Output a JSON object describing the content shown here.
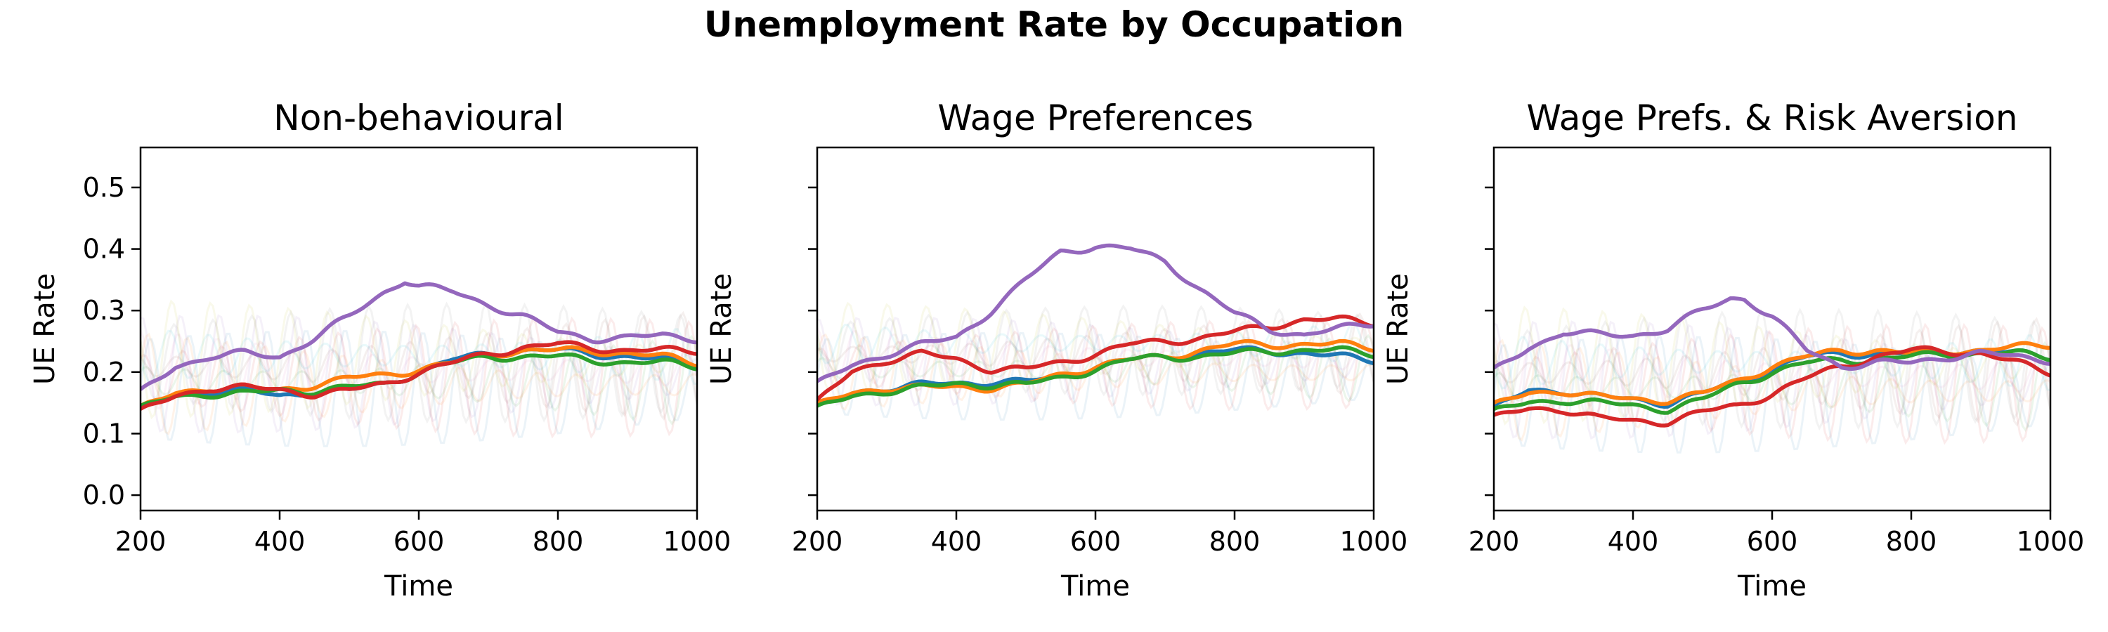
{
  "figure_title": "Unemployment Rate by Occupation",
  "colors": {
    "blue": "#1f77b4",
    "orange": "#ff7f0e",
    "green": "#2ca02c",
    "red": "#d62728",
    "purple": "#9467bd"
  },
  "chart_data": [
    {
      "type": "line",
      "title": "Non-behavioural",
      "xlabel": "Time",
      "ylabel": "UE Rate",
      "xlim": [
        200,
        1000
      ],
      "ylim": [
        -0.025,
        0.565
      ],
      "xticks": [
        200,
        400,
        600,
        800,
        1000
      ],
      "yticks": [
        0.0,
        0.1,
        0.2,
        0.3,
        0.4,
        0.5
      ],
      "show_ytick_labels": true,
      "grid": false,
      "background": {
        "center": 0.2,
        "amp": 0.08,
        "period": 56,
        "style": "faint oscillating individual runs"
      },
      "series": [
        {
          "color": "blue",
          "x": [
            200,
            250,
            300,
            350,
            400,
            450,
            500,
            550,
            600,
            650,
            700,
            750,
            800,
            850,
            900,
            950,
            1000
          ],
          "y": [
            0.14,
            0.16,
            0.17,
            0.17,
            0.16,
            0.17,
            0.17,
            0.18,
            0.2,
            0.22,
            0.23,
            0.235,
            0.235,
            0.23,
            0.225,
            0.22,
            0.215
          ]
        },
        {
          "color": "orange",
          "x": [
            200,
            250,
            300,
            350,
            400,
            450,
            500,
            550,
            600,
            650,
            700,
            750,
            800,
            850,
            900,
            950,
            1000
          ],
          "y": [
            0.14,
            0.165,
            0.175,
            0.175,
            0.17,
            0.18,
            0.19,
            0.195,
            0.205,
            0.215,
            0.23,
            0.235,
            0.235,
            0.235,
            0.23,
            0.225,
            0.215
          ]
        },
        {
          "color": "green",
          "x": [
            200,
            250,
            300,
            350,
            400,
            450,
            500,
            550,
            600,
            650,
            700,
            750,
            800,
            850,
            900,
            950,
            1000
          ],
          "y": [
            0.14,
            0.16,
            0.165,
            0.165,
            0.17,
            0.17,
            0.175,
            0.18,
            0.2,
            0.215,
            0.225,
            0.225,
            0.225,
            0.22,
            0.215,
            0.215,
            0.21
          ]
        },
        {
          "color": "red",
          "x": [
            200,
            250,
            300,
            350,
            400,
            450,
            500,
            550,
            600,
            650,
            700,
            750,
            800,
            850,
            900,
            950,
            1000
          ],
          "y": [
            0.135,
            0.16,
            0.175,
            0.175,
            0.17,
            0.165,
            0.17,
            0.18,
            0.2,
            0.215,
            0.23,
            0.24,
            0.245,
            0.24,
            0.235,
            0.235,
            0.235
          ]
        },
        {
          "color": "purple",
          "x": [
            200,
            250,
            300,
            350,
            400,
            450,
            500,
            550,
            580,
            600,
            650,
            700,
            750,
            800,
            850,
            900,
            950,
            1000
          ],
          "y": [
            0.165,
            0.21,
            0.225,
            0.23,
            0.225,
            0.255,
            0.29,
            0.33,
            0.35,
            0.34,
            0.33,
            0.31,
            0.29,
            0.265,
            0.255,
            0.255,
            0.26,
            0.255
          ]
        }
      ]
    },
    {
      "type": "line",
      "title": "Wage Preferences",
      "xlabel": "Time",
      "ylabel": "UE Rate",
      "xlim": [
        200,
        1000
      ],
      "ylim": [
        -0.025,
        0.565
      ],
      "xticks": [
        200,
        400,
        600,
        800,
        1000
      ],
      "yticks": [
        0.0,
        0.1,
        0.2,
        0.3,
        0.4,
        0.5
      ],
      "show_ytick_labels": false,
      "grid": false,
      "background": {
        "center": 0.22,
        "amp": 0.06,
        "period": 56,
        "style": "faint oscillating individual runs"
      },
      "series": [
        {
          "color": "blue",
          "x": [
            200,
            250,
            300,
            350,
            400,
            450,
            500,
            550,
            600,
            650,
            700,
            750,
            800,
            850,
            900,
            950,
            1000
          ],
          "y": [
            0.14,
            0.165,
            0.175,
            0.18,
            0.18,
            0.185,
            0.185,
            0.19,
            0.21,
            0.22,
            0.225,
            0.23,
            0.235,
            0.235,
            0.23,
            0.225,
            0.22
          ]
        },
        {
          "color": "orange",
          "x": [
            200,
            250,
            300,
            350,
            400,
            450,
            500,
            550,
            600,
            650,
            700,
            750,
            800,
            850,
            900,
            950,
            1000
          ],
          "y": [
            0.145,
            0.165,
            0.175,
            0.175,
            0.175,
            0.175,
            0.18,
            0.195,
            0.21,
            0.22,
            0.225,
            0.235,
            0.245,
            0.245,
            0.245,
            0.245,
            0.24
          ]
        },
        {
          "color": "green",
          "x": [
            200,
            250,
            300,
            350,
            400,
            450,
            500,
            550,
            600,
            650,
            700,
            750,
            800,
            850,
            900,
            950,
            1000
          ],
          "y": [
            0.14,
            0.16,
            0.17,
            0.175,
            0.18,
            0.18,
            0.18,
            0.19,
            0.205,
            0.22,
            0.225,
            0.225,
            0.23,
            0.235,
            0.235,
            0.235,
            0.23
          ]
        },
        {
          "color": "red",
          "x": [
            200,
            250,
            300,
            350,
            400,
            450,
            500,
            550,
            600,
            650,
            700,
            750,
            800,
            850,
            900,
            950,
            1000
          ],
          "y": [
            0.15,
            0.2,
            0.22,
            0.23,
            0.22,
            0.205,
            0.205,
            0.215,
            0.23,
            0.245,
            0.25,
            0.255,
            0.265,
            0.275,
            0.285,
            0.285,
            0.28
          ]
        },
        {
          "color": "purple",
          "x": [
            200,
            250,
            300,
            350,
            400,
            450,
            500,
            550,
            600,
            650,
            700,
            750,
            800,
            850,
            900,
            950,
            1000
          ],
          "y": [
            0.18,
            0.21,
            0.23,
            0.245,
            0.255,
            0.3,
            0.35,
            0.395,
            0.405,
            0.4,
            0.38,
            0.335,
            0.295,
            0.27,
            0.26,
            0.27,
            0.28
          ]
        }
      ]
    },
    {
      "type": "line",
      "title": "Wage Prefs. & Risk Aversion",
      "xlabel": "Time",
      "ylabel": "UE Rate",
      "xlim": [
        200,
        1000
      ],
      "ylim": [
        -0.025,
        0.565
      ],
      "xticks": [
        200,
        400,
        600,
        800,
        1000
      ],
      "yticks": [
        0.0,
        0.1,
        0.2,
        0.3,
        0.4,
        0.5
      ],
      "show_ytick_labels": false,
      "grid": false,
      "background": {
        "center": 0.19,
        "amp": 0.08,
        "period": 56,
        "style": "faint oscillating individual runs"
      },
      "series": [
        {
          "color": "blue",
          "x": [
            200,
            250,
            300,
            350,
            400,
            450,
            500,
            550,
            600,
            650,
            700,
            750,
            800,
            850,
            900,
            950,
            1000
          ],
          "y": [
            0.14,
            0.17,
            0.17,
            0.16,
            0.155,
            0.15,
            0.165,
            0.185,
            0.205,
            0.225,
            0.23,
            0.23,
            0.23,
            0.235,
            0.235,
            0.23,
            0.225
          ]
        },
        {
          "color": "orange",
          "x": [
            200,
            250,
            300,
            350,
            400,
            450,
            500,
            550,
            600,
            650,
            700,
            750,
            800,
            850,
            900,
            950,
            1000
          ],
          "y": [
            0.145,
            0.165,
            0.17,
            0.16,
            0.155,
            0.155,
            0.165,
            0.185,
            0.21,
            0.225,
            0.235,
            0.235,
            0.23,
            0.235,
            0.235,
            0.24,
            0.245
          ]
        },
        {
          "color": "green",
          "x": [
            200,
            250,
            300,
            350,
            400,
            450,
            500,
            550,
            600,
            650,
            700,
            750,
            800,
            850,
            900,
            950,
            1000
          ],
          "y": [
            0.135,
            0.15,
            0.155,
            0.15,
            0.145,
            0.14,
            0.155,
            0.18,
            0.2,
            0.215,
            0.22,
            0.22,
            0.225,
            0.23,
            0.23,
            0.23,
            0.225
          ]
        },
        {
          "color": "red",
          "x": [
            200,
            250,
            300,
            350,
            400,
            450,
            500,
            550,
            600,
            650,
            700,
            750,
            800,
            850,
            900,
            950,
            1000
          ],
          "y": [
            0.125,
            0.14,
            0.14,
            0.125,
            0.12,
            0.12,
            0.135,
            0.145,
            0.165,
            0.19,
            0.21,
            0.225,
            0.235,
            0.235,
            0.23,
            0.215,
            0.2
          ]
        },
        {
          "color": "purple",
          "x": [
            200,
            250,
            300,
            350,
            400,
            450,
            500,
            540,
            560,
            600,
            650,
            700,
            750,
            800,
            850,
            900,
            950,
            1000
          ],
          "y": [
            0.2,
            0.24,
            0.265,
            0.26,
            0.26,
            0.27,
            0.3,
            0.32,
            0.32,
            0.29,
            0.235,
            0.21,
            0.215,
            0.215,
            0.225,
            0.23,
            0.225,
            0.22
          ]
        }
      ]
    }
  ]
}
